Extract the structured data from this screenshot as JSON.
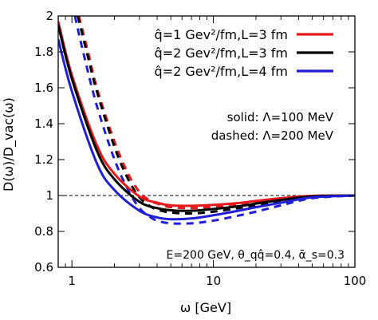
{
  "chart_data": {
    "type": "line",
    "xlabel": "ω [GeV]",
    "ylabel": "D(ω)/D_vac(ω)",
    "xscale": "log",
    "xlim": [
      0.8,
      100
    ],
    "ylim": [
      0.6,
      2.0
    ],
    "x_ticks": [
      1,
      10,
      100
    ],
    "x_tick_labels": [
      "1",
      "10",
      "100"
    ],
    "y_ticks": [
      0.6,
      0.8,
      1.0,
      1.2,
      1.4,
      1.6,
      1.8,
      2.0
    ],
    "y_tick_labels": [
      "0.6",
      "0.8",
      "1",
      "1.2",
      "1.4",
      "1.6",
      "1.8",
      "2"
    ],
    "reference_line": {
      "y": 1.0,
      "style": "dashed",
      "color": "#000000"
    },
    "legend": {
      "placement": "top-right",
      "entries": [
        {
          "label": "q̂=1 Gev²/fm,L=3 fm",
          "color": "#e41a1c"
        },
        {
          "label": "q̂=2 Gev²/fm,L=3 fm",
          "color": "#000000"
        },
        {
          "label": "q̂=2 Gev²/fm,L=4 fm",
          "color": "#1f1fd6"
        }
      ]
    },
    "annotations": {
      "solid": "solid: Λ=100 MeV",
      "dashed": "dashed: Λ=200 MeV",
      "params": "E=200 GeV, θ_qq̂=0.4, ᾱ_s=0.3"
    },
    "series": [
      {
        "legend": "q̂=1 Gev²/fm,L=3 fm, Λ=100 MeV",
        "color": "#e41a1c",
        "style": "solid",
        "x": [
          0.8,
          1.0,
          1.5,
          2.0,
          3.0,
          4.0,
          5.0,
          7.0,
          10.0,
          15.0,
          20.0,
          30.0,
          50.0,
          100.0
        ],
        "y": [
          1.97,
          1.67,
          1.28,
          1.12,
          0.995,
          0.96,
          0.945,
          0.943,
          0.948,
          0.958,
          0.97,
          0.985,
          0.998,
          1.0
        ]
      },
      {
        "legend": "q̂=2 Gev²/fm,L=3 fm, Λ=100 MeV",
        "color": "#000000",
        "style": "solid",
        "x": [
          0.8,
          1.0,
          1.5,
          2.0,
          3.0,
          4.0,
          5.0,
          7.0,
          10.0,
          15.0,
          20.0,
          30.0,
          50.0,
          100.0
        ],
        "y": [
          1.95,
          1.65,
          1.25,
          1.09,
          0.965,
          0.93,
          0.918,
          0.915,
          0.925,
          0.94,
          0.955,
          0.975,
          0.995,
          1.0
        ]
      },
      {
        "legend": "q̂=2 Gev²/fm,L=4 fm, Λ=100 MeV",
        "color": "#1f1fd6",
        "style": "solid",
        "x": [
          0.8,
          1.0,
          1.5,
          2.0,
          3.0,
          4.0,
          5.0,
          7.0,
          10.0,
          15.0,
          20.0,
          30.0,
          50.0,
          100.0
        ],
        "y": [
          1.87,
          1.58,
          1.18,
          1.03,
          0.915,
          0.878,
          0.868,
          0.872,
          0.89,
          0.915,
          0.935,
          0.96,
          0.99,
          1.0
        ]
      },
      {
        "legend": "q̂=1 Gev²/fm,L=3 fm, Λ=200 MeV",
        "color": "#e41a1c",
        "style": "dashed",
        "x": [
          1.12,
          1.3,
          1.5,
          2.0,
          2.5,
          3.0,
          3.5,
          4.0,
          5.0,
          7.0,
          10.0,
          15.0,
          20.0,
          30.0,
          50.0,
          100.0
        ],
        "y": [
          2.0,
          1.8,
          1.6,
          1.3,
          1.12,
          1.02,
          0.975,
          0.955,
          0.935,
          0.93,
          0.937,
          0.952,
          0.965,
          0.982,
          0.998,
          1.0
        ]
      },
      {
        "legend": "q̂=2 Gev²/fm,L=3 fm, Λ=200 MeV",
        "color": "#000000",
        "style": "dashed",
        "x": [
          1.1,
          1.3,
          1.5,
          2.0,
          2.5,
          3.0,
          3.5,
          4.0,
          5.0,
          7.0,
          10.0,
          15.0,
          20.0,
          30.0,
          50.0,
          100.0
        ],
        "y": [
          2.0,
          1.77,
          1.58,
          1.27,
          1.09,
          0.99,
          0.945,
          0.922,
          0.905,
          0.9,
          0.91,
          0.93,
          0.948,
          0.972,
          0.995,
          1.0
        ]
      },
      {
        "legend": "q̂=2 Gev²/fm,L=4 fm, Λ=200 MeV",
        "color": "#1f1fd6",
        "style": "dashed",
        "x": [
          1.05,
          1.2,
          1.5,
          2.0,
          2.5,
          3.0,
          3.5,
          4.0,
          5.0,
          7.0,
          10.0,
          15.0,
          20.0,
          30.0,
          50.0,
          100.0
        ],
        "y": [
          2.0,
          1.8,
          1.5,
          1.2,
          1.03,
          0.93,
          0.885,
          0.86,
          0.845,
          0.845,
          0.86,
          0.888,
          0.91,
          0.945,
          0.985,
          1.0
        ]
      }
    ]
  }
}
